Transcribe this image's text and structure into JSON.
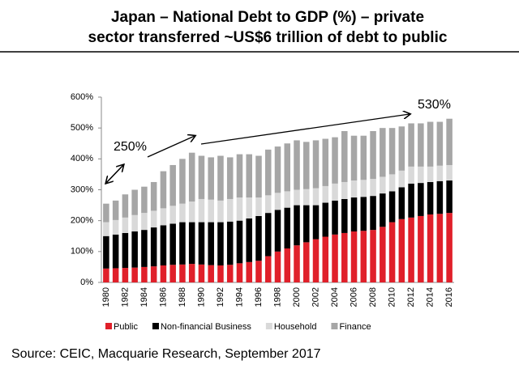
{
  "chart_data": {
    "type": "stacked_bar",
    "title": [
      "Japan – National Debt to GDP (%) – private",
      "sector transferred ~US$6 trillion of debt to public"
    ],
    "source": "Source: CEIC, Macquarie Research, September 2017",
    "annotations": [
      "250%",
      "530%"
    ],
    "categories": [
      "1980",
      null,
      "1982",
      null,
      "1984",
      null,
      "1986",
      null,
      "1988",
      null,
      "1990",
      null,
      "1992",
      null,
      "1994",
      null,
      "1996",
      null,
      "1998",
      null,
      "2000",
      null,
      "2002",
      null,
      "2004",
      null,
      "2006",
      null,
      "2008",
      null,
      "2010",
      null,
      "2012",
      null,
      "2014",
      null,
      "2016"
    ],
    "series": [
      {
        "name": "Public",
        "color": "#e0202a",
        "values": [
          45,
          46,
          47,
          48,
          50,
          52,
          55,
          57,
          58,
          60,
          58,
          56,
          55,
          57,
          62,
          66,
          70,
          85,
          100,
          110,
          120,
          130,
          140,
          148,
          155,
          160,
          165,
          167,
          170,
          180,
          195,
          205,
          210,
          215,
          220,
          222,
          225
        ]
      },
      {
        "name": "Non-financial Business",
        "color": "#000000",
        "values": [
          105,
          109,
          113,
          117,
          120,
          126,
          130,
          133,
          137,
          135,
          137,
          139,
          140,
          140,
          138,
          141,
          145,
          140,
          135,
          132,
          130,
          120,
          110,
          110,
          110,
          110,
          110,
          110,
          110,
          108,
          100,
          103,
          110,
          107,
          105,
          106,
          105
        ]
      },
      {
        "name": "Household",
        "color": "#d9d9d9",
        "values": [
          45,
          47,
          50,
          53,
          55,
          54,
          55,
          58,
          60,
          67,
          75,
          73,
          70,
          73,
          75,
          68,
          60,
          57,
          55,
          53,
          50,
          52,
          55,
          54,
          55,
          55,
          55,
          55,
          55,
          54,
          55,
          54,
          55,
          53,
          50,
          50,
          50
        ]
      },
      {
        "name": "Finance",
        "color": "#a6a6a6",
        "values": [
          60,
          63,
          75,
          82,
          85,
          93,
          120,
          132,
          145,
          158,
          140,
          137,
          145,
          135,
          140,
          140,
          135,
          148,
          150,
          155,
          160,
          153,
          155,
          153,
          150,
          165,
          145,
          143,
          155,
          158,
          150,
          143,
          140,
          140,
          145,
          142,
          150
        ]
      }
    ],
    "ylim": [
      0,
      600
    ],
    "yticks": [
      {
        "value": 0,
        "label": "0%"
      },
      {
        "value": 100,
        "label": "100%"
      },
      {
        "value": 200,
        "label": "200%"
      },
      {
        "value": 300,
        "label": "300%"
      },
      {
        "value": 400,
        "label": "400%"
      },
      {
        "value": 500,
        "label": "500%"
      },
      {
        "value": 600,
        "label": "600%"
      }
    ],
    "legend": "bottom"
  }
}
